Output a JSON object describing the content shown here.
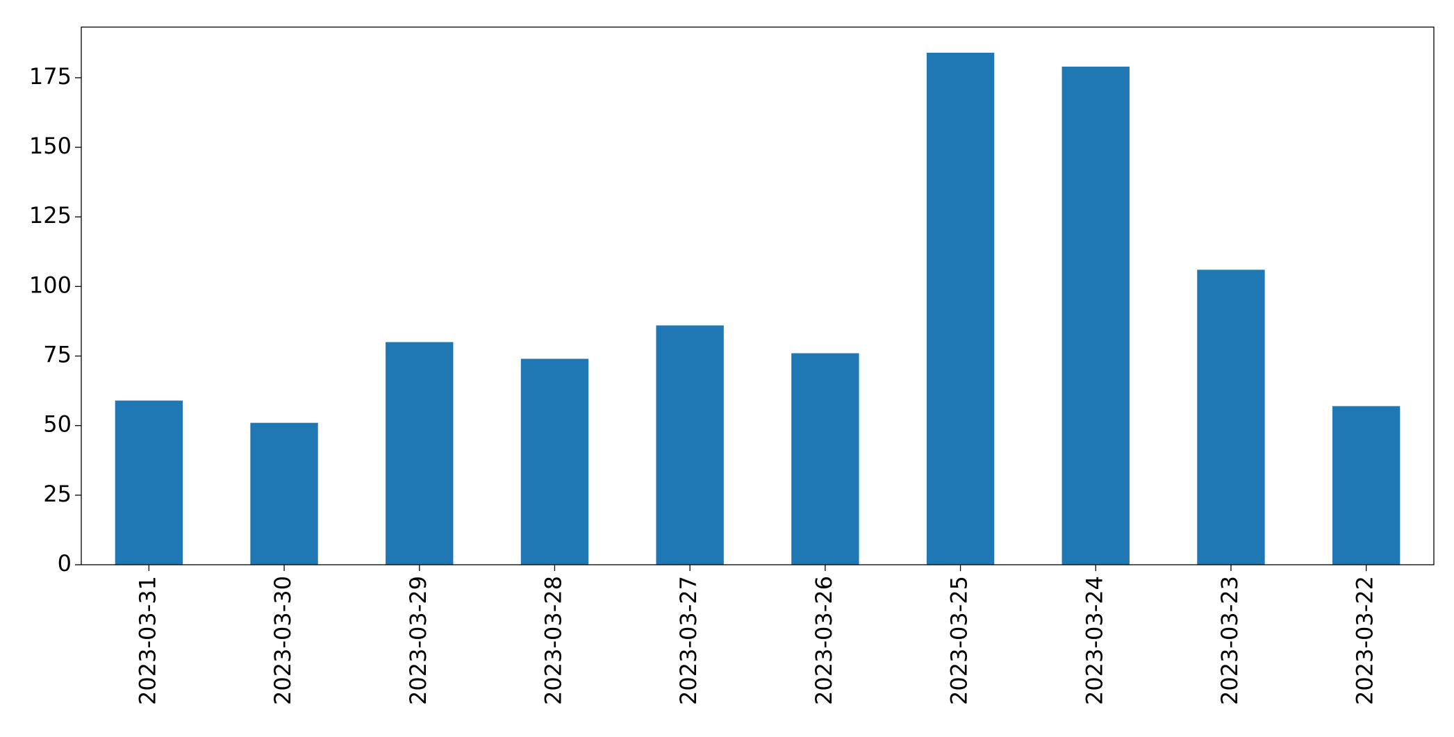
{
  "chart_data": {
    "type": "bar",
    "categories": [
      "2023-03-31",
      "2023-03-30",
      "2023-03-29",
      "2023-03-28",
      "2023-03-27",
      "2023-03-26",
      "2023-03-25",
      "2023-03-24",
      "2023-03-23",
      "2023-03-22"
    ],
    "values": [
      59,
      51,
      80,
      74,
      86,
      76,
      184,
      179,
      106,
      57
    ],
    "color": "#1f77b4",
    "ylim": [
      0,
      193.2
    ],
    "yticks": [
      0,
      25,
      50,
      75,
      100,
      125,
      150,
      175
    ],
    "grid": false
  }
}
